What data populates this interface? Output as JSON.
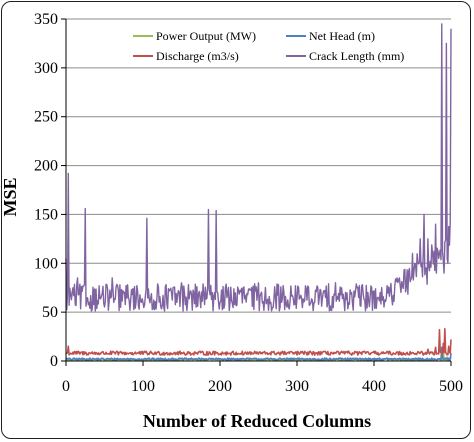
{
  "chart_data": {
    "type": "line",
    "title": "",
    "xlabel": "Number of Reduced Columns",
    "ylabel": "MSE",
    "xlim": [
      0,
      500
    ],
    "ylim": [
      0,
      350
    ],
    "xticks": [
      "0",
      "100",
      "200",
      "300",
      "400",
      "500"
    ],
    "yticks": [
      "0",
      "50",
      "100",
      "150",
      "200",
      "250",
      "300",
      "350"
    ],
    "grid": "horizontal",
    "legend_position": "top-center",
    "series": [
      {
        "name": "Power Output (MW)",
        "color": "#9bbb59",
        "baseline": 1.5,
        "noise": 0.8,
        "anchors": [
          [
            490,
            12
          ],
          [
            495,
            4
          ],
          [
            500,
            6
          ]
        ]
      },
      {
        "name": "Net Head (m)",
        "color": "#4f81bd",
        "baseline": 2.0,
        "noise": 1.0,
        "anchors": [
          [
            455,
            2
          ],
          [
            475,
            3
          ],
          [
            488,
            14
          ],
          [
            493,
            3
          ],
          [
            500,
            8
          ]
        ]
      },
      {
        "name": "Discharge (m3/s)",
        "color": "#c0504d",
        "baseline": 8.0,
        "noise": 2.0,
        "anchors": [
          [
            3,
            15
          ],
          [
            460,
            8
          ],
          [
            470,
            12
          ],
          [
            480,
            14
          ],
          [
            485,
            32
          ],
          [
            490,
            18
          ],
          [
            492,
            33
          ],
          [
            497,
            15
          ],
          [
            500,
            22
          ]
        ]
      },
      {
        "name": "Crack Length (mm)",
        "color": "#8064a2",
        "baseline": 65,
        "noise": 14,
        "anchors": [
          [
            0,
            105
          ],
          [
            3,
            192
          ],
          [
            8,
            70
          ],
          [
            15,
            85
          ],
          [
            25,
            156
          ],
          [
            30,
            60
          ],
          [
            60,
            85
          ],
          [
            100,
            60
          ],
          [
            105,
            146
          ],
          [
            110,
            65
          ],
          [
            150,
            80
          ],
          [
            185,
            155
          ],
          [
            190,
            70
          ],
          [
            195,
            154
          ],
          [
            200,
            60
          ],
          [
            230,
            75
          ],
          [
            250,
            80
          ],
          [
            280,
            60
          ],
          [
            320,
            62
          ],
          [
            350,
            80
          ],
          [
            380,
            65
          ],
          [
            410,
            75
          ],
          [
            430,
            85
          ],
          [
            450,
            110
          ],
          [
            460,
            125
          ],
          [
            465,
            150
          ],
          [
            470,
            125
          ],
          [
            480,
            140
          ],
          [
            484,
            105
          ],
          [
            488,
            345
          ],
          [
            491,
            90
          ],
          [
            494,
            325
          ],
          [
            496,
            100
          ],
          [
            500,
            340
          ]
        ]
      }
    ]
  }
}
